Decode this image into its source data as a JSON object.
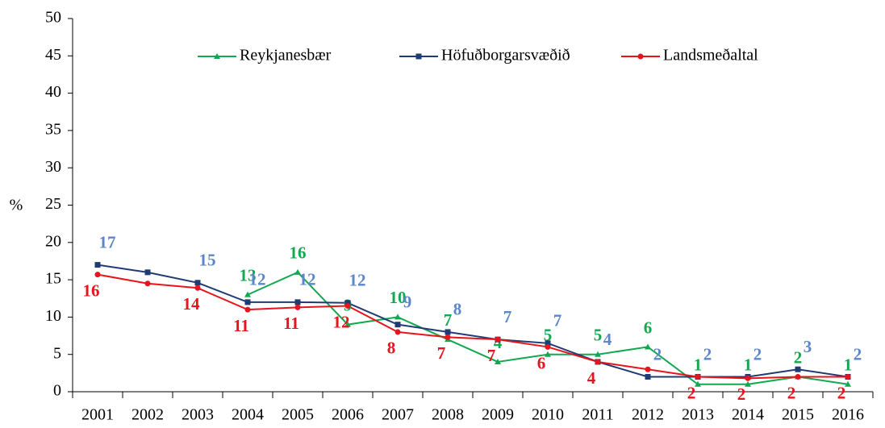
{
  "chart_data": {
    "type": "line",
    "y_label": "%",
    "categories": [
      "2001",
      "2002",
      "2003",
      "2004",
      "2005",
      "2006",
      "2007",
      "2008",
      "2009",
      "2010",
      "2011",
      "2012",
      "2013",
      "2014",
      "2015",
      "2016"
    ],
    "series": [
      {
        "name": "Reykjanesbær",
        "color": "#11a84f",
        "marker": "triangle",
        "values": [
          null,
          null,
          null,
          13,
          16,
          9,
          10,
          7,
          4,
          5,
          5,
          6,
          1,
          1,
          2,
          1
        ],
        "value_labels": [
          null,
          null,
          null,
          "13",
          "16",
          "9",
          "10",
          "7",
          "4",
          "5",
          "5",
          "6",
          "1",
          "1",
          "2",
          "1"
        ]
      },
      {
        "name": "Höfuðborgarsvæðið",
        "color": "#1f3b73",
        "label_color": "#5b86c9",
        "marker": "square",
        "values": [
          17,
          16,
          14.6,
          12,
          12,
          11.9,
          9,
          8,
          7,
          6.5,
          4,
          2,
          2,
          2,
          3,
          2
        ],
        "value_labels": [
          "17",
          null,
          "15",
          "12",
          "12",
          "12",
          "9",
          "8",
          "7",
          "7",
          "4",
          "2",
          "2",
          "2",
          "3",
          "2"
        ]
      },
      {
        "name": "Landsmeðaltal",
        "color": "#e8141b",
        "marker": "circle",
        "values": [
          15.7,
          14.5,
          13.9,
          11,
          11.3,
          11.5,
          8,
          7.3,
          7,
          6,
          4,
          3,
          2,
          1.8,
          2,
          2
        ],
        "value_labels": [
          "16",
          null,
          "14",
          "11",
          "11",
          "12",
          "8",
          "7",
          "7",
          "6",
          "4",
          null,
          "2",
          "2",
          "2",
          "2"
        ]
      }
    ],
    "ylim": [
      0,
      50
    ],
    "yticks": [
      0,
      5,
      10,
      15,
      20,
      25,
      30,
      35,
      40,
      45,
      50
    ],
    "legend": "top"
  }
}
